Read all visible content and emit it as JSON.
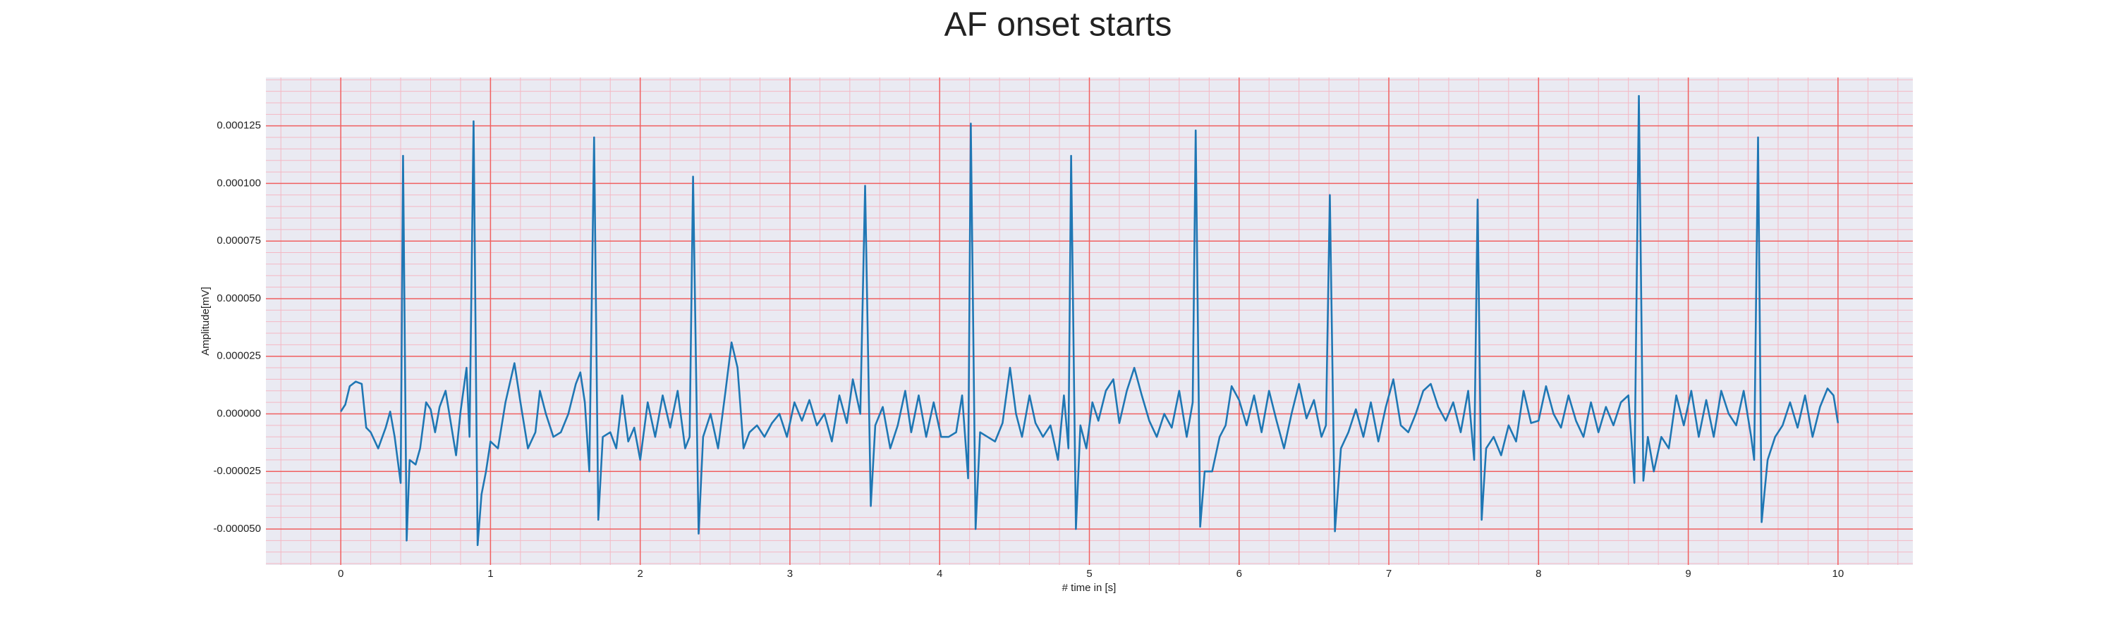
{
  "chart_data": {
    "type": "line",
    "title": "AF onset starts",
    "x_label": "# time in [s]",
    "y_label": "Amplitude[mV]",
    "color": "#1f77b4",
    "grid": true,
    "minor_grid": true,
    "xlim": [
      -0.5,
      10.5
    ],
    "xticks": [
      0,
      1,
      2,
      3,
      4,
      5,
      6,
      7,
      8,
      9,
      10
    ],
    "ylim": [
      -6.56e-05,
      0.000146
    ],
    "yticks": [
      {
        "value": -5e-05,
        "label": "-0.000050"
      },
      {
        "value": -2.5e-05,
        "label": "-0.000025"
      },
      {
        "value": 0,
        "label": "0.000000"
      },
      {
        "value": 2.5e-05,
        "label": "0.000025"
      },
      {
        "value": 5e-05,
        "label": "0.000050"
      },
      {
        "value": 7.5e-05,
        "label": "0.000075"
      },
      {
        "value": 0.0001,
        "label": "0.000100"
      },
      {
        "value": 0.000125,
        "label": "0.000125"
      }
    ],
    "x": [
      0,
      0.03,
      0.06,
      0.1,
      0.14,
      0.17,
      0.2,
      0.25,
      0.3,
      0.33,
      0.36,
      0.38,
      0.4,
      0.416,
      0.44,
      0.46,
      0.5,
      0.53,
      0.57,
      0.6,
      0.63,
      0.66,
      0.7,
      0.74,
      0.77,
      0.8,
      0.84,
      0.86,
      0.887,
      0.914,
      0.94,
      0.97,
      1.0,
      1.05,
      1.1,
      1.16,
      1.2,
      1.25,
      1.3,
      1.33,
      1.37,
      1.42,
      1.47,
      1.52,
      1.57,
      1.6,
      1.63,
      1.66,
      1.692,
      1.72,
      1.75,
      1.8,
      1.84,
      1.88,
      1.92,
      1.96,
      2.0,
      2.05,
      2.1,
      2.15,
      2.2,
      2.25,
      2.3,
      2.33,
      2.353,
      2.39,
      2.42,
      2.47,
      2.52,
      2.57,
      2.61,
      2.65,
      2.69,
      2.73,
      2.78,
      2.83,
      2.88,
      2.93,
      2.98,
      3.03,
      3.08,
      3.13,
      3.18,
      3.23,
      3.28,
      3.33,
      3.38,
      3.42,
      3.47,
      3.502,
      3.54,
      3.57,
      3.62,
      3.67,
      3.72,
      3.77,
      3.81,
      3.86,
      3.91,
      3.96,
      4.01,
      4.06,
      4.11,
      4.15,
      4.19,
      4.208,
      4.24,
      4.27,
      4.32,
      4.37,
      4.42,
      4.47,
      4.51,
      4.55,
      4.6,
      4.64,
      4.69,
      4.74,
      4.79,
      4.83,
      4.86,
      4.878,
      4.91,
      4.94,
      4.98,
      5.02,
      5.06,
      5.11,
      5.16,
      5.2,
      5.25,
      5.3,
      5.35,
      5.4,
      5.45,
      5.5,
      5.55,
      5.6,
      5.65,
      5.69,
      5.71,
      5.74,
      5.77,
      5.82,
      5.87,
      5.91,
      5.95,
      6.0,
      6.05,
      6.1,
      6.15,
      6.2,
      6.25,
      6.3,
      6.35,
      6.4,
      6.45,
      6.5,
      6.55,
      6.58,
      6.606,
      6.64,
      6.68,
      6.73,
      6.78,
      6.83,
      6.88,
      6.93,
      6.98,
      7.03,
      7.08,
      7.13,
      7.18,
      7.23,
      7.28,
      7.33,
      7.38,
      7.43,
      7.48,
      7.53,
      7.57,
      7.593,
      7.62,
      7.65,
      7.7,
      7.75,
      7.8,
      7.85,
      7.9,
      7.95,
      8.0,
      8.05,
      8.1,
      8.15,
      8.2,
      8.25,
      8.3,
      8.35,
      8.4,
      8.45,
      8.5,
      8.55,
      8.6,
      8.64,
      8.67,
      8.7,
      8.73,
      8.77,
      8.82,
      8.87,
      8.92,
      8.97,
      9.02,
      9.07,
      9.12,
      9.17,
      9.22,
      9.27,
      9.32,
      9.37,
      9.42,
      9.44,
      9.466,
      9.49,
      9.53,
      9.58,
      9.63,
      9.68,
      9.73,
      9.78,
      9.83,
      9.88,
      9.93,
      9.97,
      10.0
    ],
    "values": [
      1e-06,
      4e-06,
      1.2e-05,
      1.4e-05,
      1.3e-05,
      -6e-06,
      -8e-06,
      -1.5e-05,
      -6e-06,
      1e-06,
      -1e-05,
      -2e-05,
      -3e-05,
      0.000112,
      -5.5e-05,
      -2e-05,
      -2.2e-05,
      -1.5e-05,
      5e-06,
      2e-06,
      -8e-06,
      3e-06,
      1e-05,
      -6e-06,
      -1.8e-05,
      1e-06,
      2e-05,
      -1e-05,
      0.000127,
      -5.7e-05,
      -3.5e-05,
      -2.5e-05,
      -1.2e-05,
      -1.5e-05,
      5e-06,
      2.2e-05,
      5e-06,
      -1.5e-05,
      -8e-06,
      1e-05,
      0,
      -1e-05,
      -8e-06,
      0,
      1.3e-05,
      1.8e-05,
      5e-06,
      -2.5e-05,
      0.00012,
      -4.6e-05,
      -1e-05,
      -8e-06,
      -1.5e-05,
      8e-06,
      -1.2e-05,
      -6e-06,
      -2e-05,
      5e-06,
      -1e-05,
      8e-06,
      -6e-06,
      1e-05,
      -1.5e-05,
      -1e-05,
      0.000103,
      -5.2e-05,
      -1e-05,
      0,
      -1.5e-05,
      1e-05,
      3.1e-05,
      2e-05,
      -1.5e-05,
      -8e-06,
      -5e-06,
      -1e-05,
      -4e-06,
      0,
      -1e-05,
      5e-06,
      -3e-06,
      6e-06,
      -5e-06,
      0,
      -1.2e-05,
      8e-06,
      -4e-06,
      1.5e-05,
      0,
      9.9e-05,
      -4e-05,
      -5e-06,
      3e-06,
      -1.5e-05,
      -5e-06,
      1e-05,
      -8e-06,
      8e-06,
      -1e-05,
      5e-06,
      -1e-05,
      -1e-05,
      -8e-06,
      8e-06,
      -2.8e-05,
      0.000126,
      -5e-05,
      -8e-06,
      -1e-05,
      -1.2e-05,
      -4e-06,
      2e-05,
      0,
      -1e-05,
      8e-06,
      -4e-06,
      -1e-05,
      -5e-06,
      -2e-05,
      8e-06,
      -1.5e-05,
      0.000112,
      -5e-05,
      -5e-06,
      -1.5e-05,
      5e-06,
      -3e-06,
      1e-05,
      1.5e-05,
      -4e-06,
      1e-05,
      2e-05,
      8e-06,
      -3e-06,
      -1e-05,
      0,
      -6e-06,
      1e-05,
      -1e-05,
      5e-06,
      0.000123,
      -4.9e-05,
      -2.5e-05,
      -2.5e-05,
      -1e-05,
      -5e-06,
      1.2e-05,
      6e-06,
      -5e-06,
      8e-06,
      -8e-06,
      1e-05,
      -3e-06,
      -1.5e-05,
      0,
      1.3e-05,
      -2e-06,
      6e-06,
      -1e-05,
      -5e-06,
      9.5e-05,
      -5.1e-05,
      -1.5e-05,
      -8e-06,
      2e-06,
      -1e-05,
      5e-06,
      -1.2e-05,
      3e-06,
      1.5e-05,
      -5e-06,
      -8e-06,
      0,
      1e-05,
      1.3e-05,
      3e-06,
      -3e-06,
      5e-06,
      -8e-06,
      1e-05,
      -2e-05,
      9.3e-05,
      -4.6e-05,
      -1.5e-05,
      -1e-05,
      -1.8e-05,
      -5e-06,
      -1.2e-05,
      1e-05,
      -4e-06,
      -3e-06,
      1.2e-05,
      0,
      -6e-06,
      8e-06,
      -3e-06,
      -1e-05,
      5e-06,
      -8e-06,
      3e-06,
      -5e-06,
      5e-06,
      8e-06,
      -3e-05,
      0.000138,
      -2.9e-05,
      -1e-05,
      -2.5e-05,
      -1e-05,
      -1.5e-05,
      8e-06,
      -5e-06,
      1e-05,
      -1e-05,
      6e-06,
      -1e-05,
      1e-05,
      0,
      -5e-06,
      1e-05,
      -1e-05,
      -2e-05,
      0.00012,
      -4.7e-05,
      -2e-05,
      -1e-05,
      -5e-06,
      5e-06,
      -6e-06,
      8e-06,
      -1e-05,
      3e-06,
      1.1e-05,
      8e-06,
      -4e-06
    ]
  }
}
